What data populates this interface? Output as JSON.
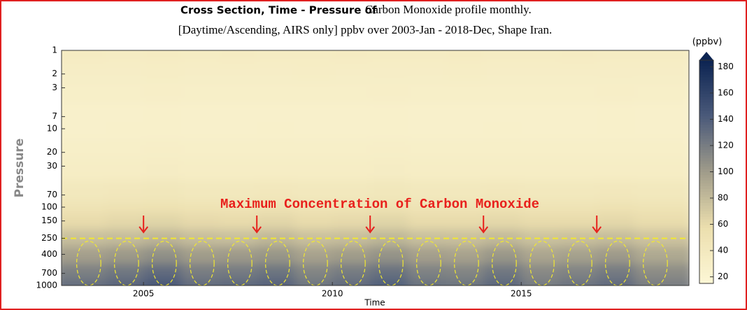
{
  "chart_data": {
    "type": "heatmap",
    "title_bold": "Cross Section, Time - Pressure of",
    "title": "Carbon Monoxide profile monthly.",
    "subtitle": "[Daytime/Ascending, AIRS only] ppbv over 2003-Jan - 2018-Dec, Shape Iran.",
    "x_label": "Time",
    "y_label": "Pressure",
    "colorbar_label": "(ppbv)",
    "x": [
      2003,
      2004,
      2005,
      2006,
      2007,
      2008,
      2009,
      2010,
      2011,
      2012,
      2013,
      2014,
      2015,
      2016,
      2017,
      2018
    ],
    "levels": [
      1,
      2,
      3,
      7,
      10,
      20,
      30,
      70,
      100,
      150,
      250,
      400,
      700,
      1000
    ],
    "values": [
      [
        36,
        35,
        36,
        35,
        36,
        35,
        35,
        36,
        35,
        35,
        36,
        35,
        35,
        36,
        35,
        35
      ],
      [
        32,
        32,
        33,
        32,
        32,
        32,
        33,
        32,
        32,
        32,
        33,
        32,
        32,
        32,
        32,
        32
      ],
      [
        30,
        30,
        31,
        30,
        30,
        30,
        30,
        30,
        31,
        30,
        30,
        30,
        30,
        30,
        31,
        30
      ],
      [
        27,
        27,
        28,
        27,
        27,
        27,
        27,
        27,
        28,
        27,
        27,
        27,
        27,
        27,
        28,
        27
      ],
      [
        27,
        28,
        28,
        27,
        27,
        28,
        27,
        27,
        28,
        27,
        27,
        28,
        27,
        27,
        28,
        27
      ],
      [
        30,
        30,
        31,
        30,
        30,
        30,
        30,
        30,
        31,
        30,
        30,
        30,
        30,
        30,
        30,
        30
      ],
      [
        33,
        33,
        34,
        33,
        33,
        33,
        33,
        33,
        34,
        33,
        33,
        33,
        33,
        33,
        33,
        33
      ],
      [
        42,
        43,
        44,
        42,
        42,
        43,
        42,
        42,
        44,
        42,
        42,
        43,
        42,
        42,
        43,
        42
      ],
      [
        50,
        52,
        53,
        51,
        50,
        52,
        50,
        51,
        53,
        50,
        50,
        52,
        50,
        50,
        52,
        50
      ],
      [
        60,
        62,
        64,
        61,
        60,
        63,
        60,
        61,
        64,
        60,
        60,
        62,
        60,
        60,
        62,
        59
      ],
      [
        78,
        80,
        84,
        79,
        78,
        82,
        77,
        79,
        83,
        78,
        77,
        81,
        76,
        77,
        80,
        75
      ],
      [
        98,
        102,
        108,
        100,
        101,
        104,
        96,
        100,
        106,
        98,
        96,
        103,
        94,
        97,
        101,
        92
      ],
      [
        118,
        124,
        132,
        120,
        122,
        126,
        115,
        121,
        128,
        117,
        115,
        124,
        112,
        116,
        122,
        110
      ],
      [
        130,
        136,
        145,
        132,
        134,
        138,
        126,
        132,
        140,
        128,
        126,
        135,
        122,
        127,
        133,
        120
      ]
    ],
    "xlim": [
      2002.83,
      2019.44
    ],
    "xticks": [
      2005,
      2010,
      2015
    ],
    "ylim": [
      1000,
      1
    ],
    "yticks": [
      1,
      2,
      3,
      7,
      10,
      20,
      30,
      70,
      100,
      150,
      250,
      400,
      700,
      1000
    ],
    "log_y": true,
    "clim": [
      15,
      185
    ],
    "cticks": [
      20,
      40,
      60,
      80,
      100,
      120,
      140,
      160,
      180
    ],
    "colorscale": [
      "#fdf7d6",
      "#ecdfae",
      "#a09c8a",
      "#4b5a7a",
      "#0c2452"
    ],
    "reference_line": 250,
    "annotation": {
      "text": "Maximum Concentration of Carbon Monoxide",
      "color": "#e8201c",
      "arrows_x": [
        2005,
        2008,
        2011,
        2014,
        2017
      ]
    }
  }
}
